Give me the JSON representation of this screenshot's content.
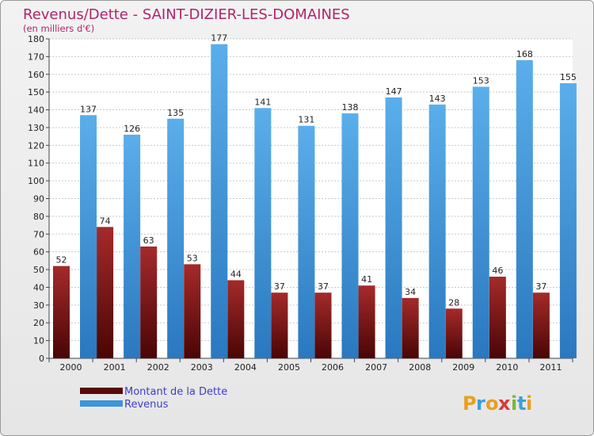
{
  "chart_data": {
    "type": "bar",
    "title": "Revenus/Dette - SAINT-DIZIER-LES-DOMAINES",
    "subtitle": "(en milliers d'€)",
    "categories": [
      "2000",
      "2001",
      "2002",
      "2003",
      "2004",
      "2005",
      "2006",
      "2007",
      "2008",
      "2009",
      "2010",
      "2011"
    ],
    "series": [
      {
        "name": "Montant de la Dette",
        "color": "#7a1010",
        "values": [
          52,
          74,
          63,
          53,
          44,
          37,
          37,
          41,
          34,
          28,
          46,
          37
        ]
      },
      {
        "name": "Revenus",
        "color": "#3d95db",
        "values": [
          137,
          126,
          135,
          177,
          141,
          131,
          138,
          147,
          143,
          153,
          168,
          155
        ]
      }
    ],
    "ylim": [
      0,
      180
    ],
    "yticks": [
      0,
      10,
      20,
      30,
      40,
      50,
      60,
      70,
      80,
      90,
      100,
      110,
      120,
      130,
      140,
      150,
      160,
      170,
      180
    ],
    "grid": true,
    "legend_position": "bottom-left"
  },
  "logo": {
    "letters": [
      "P",
      "r",
      "o",
      "x",
      "i",
      "t",
      "i"
    ],
    "colors": [
      "#e8a020",
      "#3aa0d8",
      "#e8a020",
      "#d83a3a",
      "#7ab83a",
      "#3aa0d8",
      "#e8a020"
    ]
  }
}
